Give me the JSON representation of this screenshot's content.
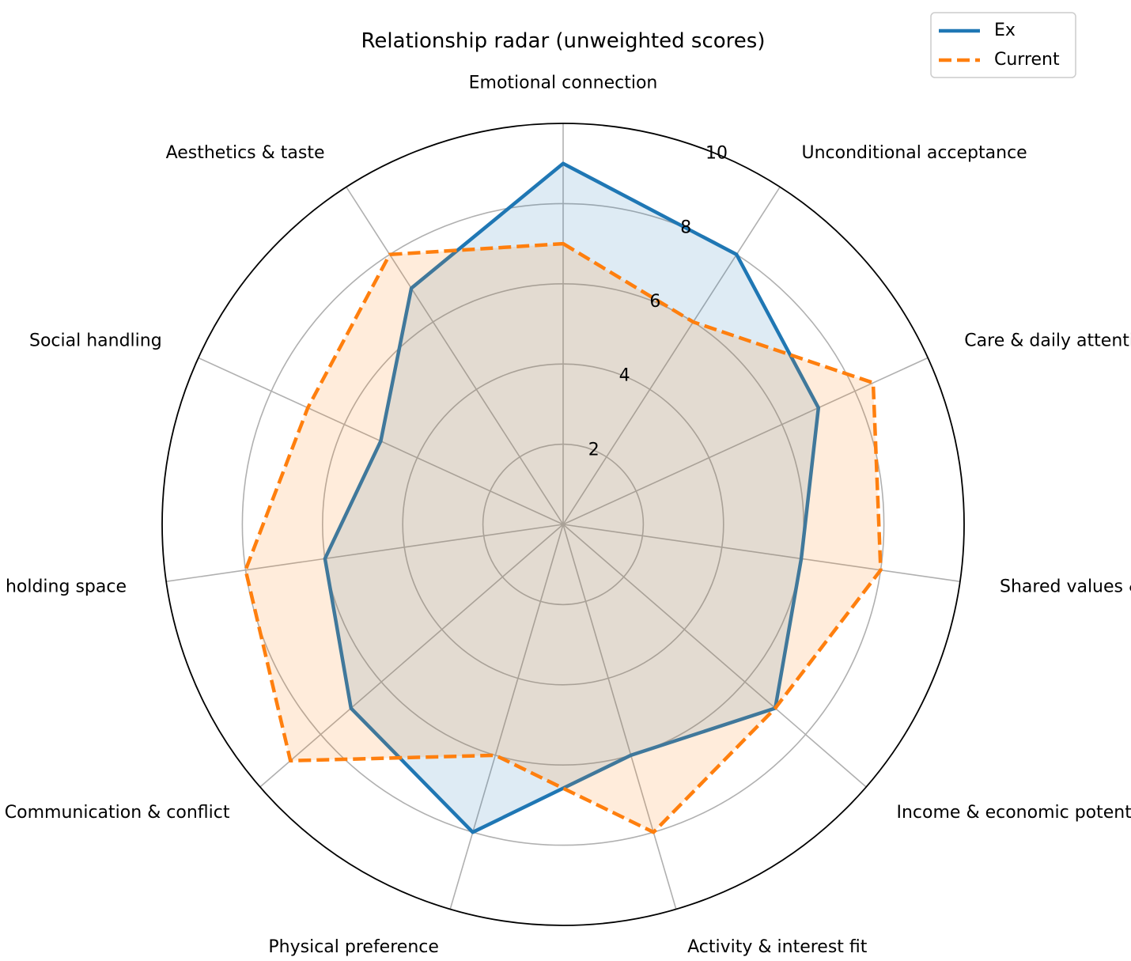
{
  "chart_data": {
    "type": "radar",
    "title": "Relationship radar (unweighted scores)",
    "categories": [
      "Emotional connection",
      "Unconditional acceptance",
      "Care & daily attentiveness",
      "Shared values & life goals",
      "Income & economic potential",
      "Activity & interest fit",
      "Physical preference",
      "Communication & conflict",
      "Patience & holding space",
      "Social handling",
      "Aesthetics & taste"
    ],
    "rlim": [
      0,
      10
    ],
    "rticks": [
      "2",
      "4",
      "6",
      "8",
      "10"
    ],
    "grid": true,
    "legend_position": "top-right",
    "series": [
      {
        "name": "Ex",
        "values": [
          9,
          8,
          7,
          6,
          7,
          6,
          8,
          7,
          6,
          5,
          7
        ],
        "color": "#1f77b4",
        "style": "solid"
      },
      {
        "name": "Current",
        "values": [
          7,
          6,
          8.5,
          8,
          7,
          8,
          6,
          9,
          8,
          7,
          8
        ],
        "color": "#ff7f0e",
        "style": "dashed"
      }
    ]
  }
}
